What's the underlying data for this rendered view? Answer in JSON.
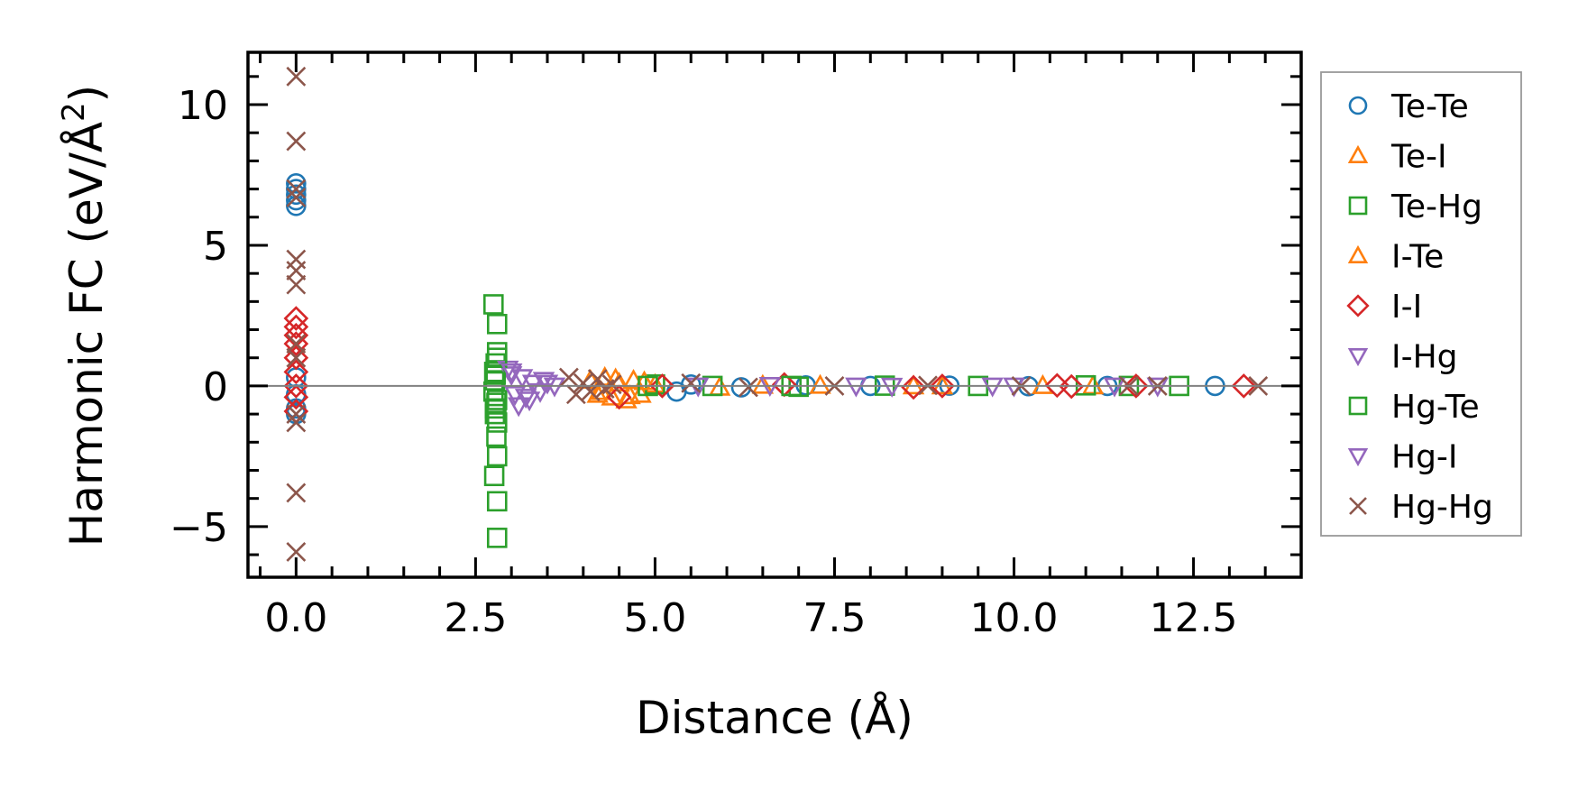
{
  "chart_data": {
    "type": "scatter",
    "title": "",
    "xlabel": "Distance (Å)",
    "ylabel_main": "Harmonic FC (eV/Å",
    "ylabel_sup": "2",
    "ylabel_close": ")",
    "xlim": [
      -0.67,
      14.0
    ],
    "ylim": [
      -6.8,
      11.86
    ],
    "xticks": [
      0.0,
      2.5,
      5.0,
      7.5,
      10.0,
      12.5
    ],
    "xtick_labels": [
      "0.0",
      "2.5",
      "5.0",
      "7.5",
      "10.0",
      "12.5"
    ],
    "yticks": [
      -5,
      0,
      5,
      10
    ],
    "ytick_labels": [
      "−5",
      "0",
      "5",
      "10"
    ],
    "grid": false,
    "reference_line_y": 0,
    "legend_placement": "outside-right",
    "series": [
      {
        "name": "Te-Te",
        "marker": "circle",
        "color": "#1f77b4",
        "x": [
          0,
          0,
          0,
          0,
          0,
          0,
          0,
          0,
          0,
          5.3,
          5.5,
          6.2,
          7.1,
          8.0,
          9.1,
          10.2,
          11.3,
          12.8
        ],
        "y": [
          7.2,
          7.0,
          6.8,
          6.6,
          6.4,
          0.3,
          -0.3,
          -0.8,
          -1.0,
          -0.2,
          0.05,
          -0.05,
          0.02,
          0.0,
          0.01,
          -0.01,
          0.0,
          0.0
        ]
      },
      {
        "name": "Te-I",
        "marker": "triangle-up",
        "color": "#ff7f0e",
        "x": [
          4.1,
          4.2,
          4.3,
          4.4,
          4.5,
          4.6,
          4.7,
          4.8,
          5.0,
          5.9,
          7.3,
          8.6,
          10.4,
          11.1
        ],
        "y": [
          0.2,
          -0.3,
          0.3,
          -0.4,
          0.1,
          -0.5,
          0.2,
          -0.3,
          0.05,
          -0.05,
          0.02,
          0.0,
          0.01,
          0.0
        ]
      },
      {
        "name": "Te-Hg",
        "marker": "square",
        "color": "#2ca02c",
        "x": [
          2.75,
          2.8,
          2.8,
          2.78,
          2.76,
          2.77,
          2.75,
          2.8,
          2.77,
          2.8,
          2.79,
          2.8,
          2.76,
          2.8,
          2.8,
          5.0,
          5.8,
          7.0,
          8.2,
          9.5,
          11.0,
          11.6,
          12.3
        ],
        "y": [
          2.9,
          2.2,
          1.2,
          0.8,
          0.5,
          0.2,
          -0.2,
          -0.5,
          -0.8,
          -1.3,
          -1.8,
          -2.5,
          -3.2,
          -4.1,
          -5.4,
          0.05,
          0.0,
          -0.03,
          0.01,
          0.0,
          0.02,
          0.0,
          0.0
        ]
      },
      {
        "name": "I-Te",
        "marker": "triangle-up",
        "color": "#ff7f0e",
        "x": [
          4.25,
          4.45,
          4.65,
          4.85,
          6.5,
          9.0
        ],
        "y": [
          -0.2,
          0.25,
          -0.35,
          0.15,
          0.02,
          0.0
        ]
      },
      {
        "name": "I-I",
        "marker": "diamond",
        "color": "#d62728",
        "x": [
          0,
          0,
          0,
          0,
          0,
          0,
          0,
          0,
          0,
          4.5,
          5.1,
          6.8,
          8.6,
          9.0,
          10.6,
          10.8,
          11.7,
          13.2
        ],
        "y": [
          2.4,
          2.1,
          1.8,
          1.5,
          1.0,
          0.5,
          0.0,
          -0.4,
          -0.9,
          -0.4,
          0.0,
          0.05,
          -0.05,
          0.0,
          0.02,
          -0.02,
          0.0,
          0.0
        ]
      },
      {
        "name": "I-Hg",
        "marker": "triangle-down",
        "color": "#9467bd",
        "x": [
          2.95,
          3.0,
          3.05,
          3.1,
          3.15,
          3.2,
          3.3,
          3.4,
          3.5,
          3.6,
          5.6,
          6.6,
          8.3,
          9.7,
          11.4,
          12.0
        ],
        "y": [
          0.6,
          0.4,
          -0.3,
          -0.7,
          0.3,
          -0.4,
          0.1,
          -0.2,
          0.1,
          0.0,
          0.0,
          0.02,
          -0.01,
          0.0,
          0.0,
          0.0
        ]
      },
      {
        "name": "Hg-Te",
        "marker": "square",
        "color": "#2ca02c",
        "x": [
          2.78,
          2.79,
          2.77,
          2.8,
          4.9,
          6.9
        ],
        "y": [
          0.4,
          -0.6,
          -1.0,
          1.0,
          0.0,
          0.0
        ]
      },
      {
        "name": "Hg-I",
        "marker": "triangle-down",
        "color": "#9467bd",
        "x": [
          3.0,
          3.25,
          3.45,
          7.8,
          10.0
        ],
        "y": [
          0.5,
          -0.5,
          0.2,
          0.0,
          0.0
        ]
      },
      {
        "name": "Hg-Hg",
        "marker": "x",
        "color": "#8c564b",
        "x": [
          0,
          0,
          0,
          0,
          0,
          0,
          0,
          0,
          0,
          0,
          0,
          0,
          0,
          3.8,
          3.9,
          4.0,
          4.1,
          4.2,
          4.3,
          4.4,
          5.5,
          6.3,
          7.5,
          8.8,
          10.1,
          11.6,
          12.0,
          13.4
        ],
        "y": [
          11.0,
          8.7,
          7.0,
          6.7,
          4.5,
          4.1,
          3.6,
          1.5,
          1.0,
          -1.0,
          -1.3,
          -3.8,
          -5.9,
          0.3,
          -0.3,
          0.1,
          -0.2,
          0.25,
          -0.1,
          0.05,
          0.1,
          -0.05,
          0.0,
          0.02,
          0.0,
          0.0,
          0.0,
          0.0
        ]
      }
    ]
  }
}
